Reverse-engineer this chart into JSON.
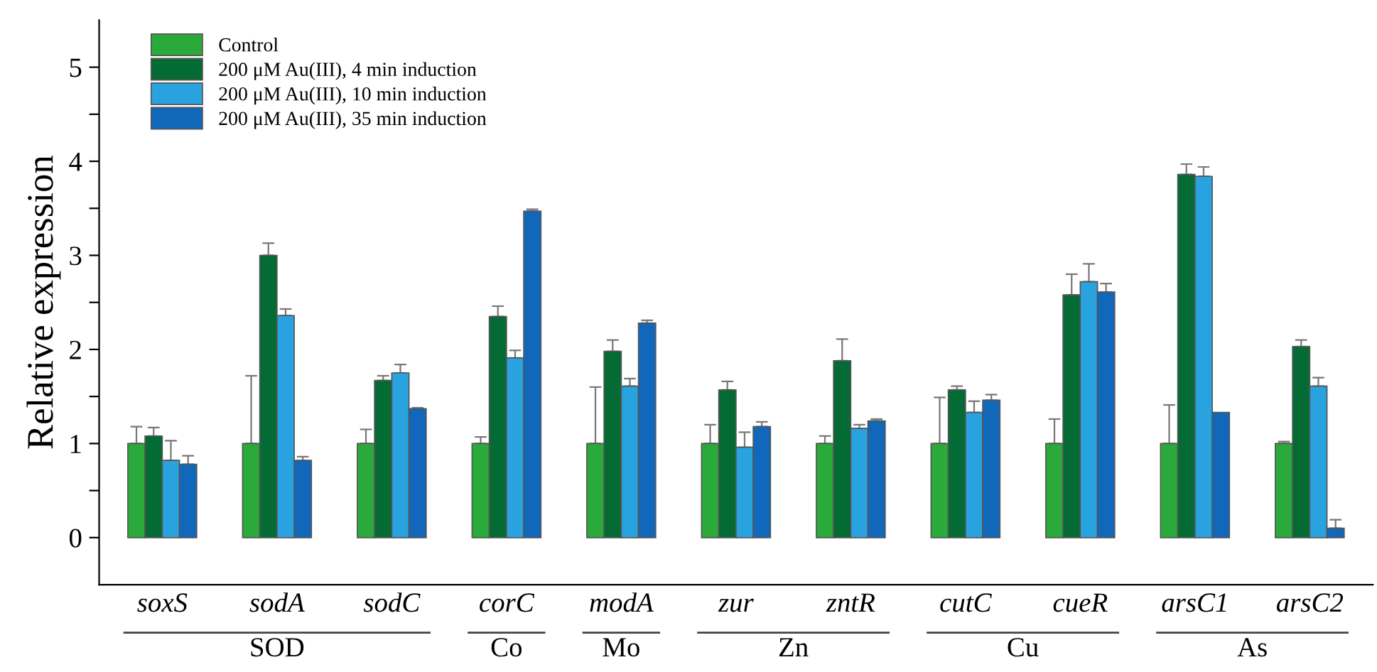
{
  "chart_data": {
    "type": "bar",
    "ylabel": "Relative expression",
    "categories": [
      "soxS",
      "sodA",
      "sodC",
      "corC",
      "modA",
      "zur",
      "zntR",
      "cutC",
      "cueR",
      "arsC1",
      "arsC2"
    ],
    "series": [
      {
        "name": "Control",
        "color": "#2aaa3a",
        "values": [
          1.0,
          1.0,
          1.0,
          1.0,
          1.0,
          1.0,
          1.0,
          1.0,
          1.0,
          1.0,
          1.0
        ],
        "errors": [
          [
            1.0,
            1.18
          ],
          [
            1.0,
            1.72
          ],
          [
            1.0,
            1.15
          ],
          [
            1.0,
            1.07
          ],
          [
            1.0,
            1.6
          ],
          [
            1.0,
            1.2
          ],
          [
            1.0,
            1.08
          ],
          [
            1.0,
            1.49
          ],
          [
            1.0,
            1.26
          ],
          [
            1.0,
            1.41
          ],
          [
            1.0,
            1.02
          ]
        ]
      },
      {
        "name": "200 μM Au(III), 4 min induction",
        "color": "#056b35",
        "values": [
          1.08,
          3.0,
          1.67,
          2.35,
          1.98,
          1.57,
          1.88,
          1.57,
          2.58,
          3.86,
          2.03
        ],
        "errors": [
          [
            1.08,
            1.17
          ],
          [
            3.0,
            3.13
          ],
          [
            1.67,
            1.72
          ],
          [
            2.35,
            2.46
          ],
          [
            1.98,
            2.1
          ],
          [
            1.57,
            1.66
          ],
          [
            1.88,
            2.11
          ],
          [
            1.57,
            1.61
          ],
          [
            2.58,
            2.8
          ],
          [
            3.86,
            3.97
          ],
          [
            2.03,
            2.1
          ]
        ]
      },
      {
        "name": "200 μM Au(III), 10 min induction",
        "color": "#29a3e0",
        "values": [
          0.82,
          2.36,
          1.75,
          1.91,
          1.61,
          0.96,
          1.16,
          1.33,
          2.72,
          3.84,
          1.61
        ],
        "errors": [
          [
            0.82,
            1.03
          ],
          [
            2.36,
            2.43
          ],
          [
            1.75,
            1.84
          ],
          [
            1.91,
            1.99
          ],
          [
            1.61,
            1.69
          ],
          [
            0.96,
            1.12
          ],
          [
            1.16,
            1.2
          ],
          [
            1.33,
            1.45
          ],
          [
            2.72,
            2.91
          ],
          [
            3.84,
            3.94
          ],
          [
            1.61,
            1.7
          ]
        ]
      },
      {
        "name": "200 μM Au(III), 35 min induction",
        "color": "#1168bb",
        "values": [
          0.78,
          0.82,
          1.37,
          3.47,
          2.28,
          1.18,
          1.24,
          1.46,
          2.61,
          1.33,
          0.1
        ],
        "errors": [
          [
            0.78,
            0.87
          ],
          [
            0.82,
            0.86
          ],
          [
            1.37,
            1.38
          ],
          [
            3.47,
            3.49
          ],
          [
            2.28,
            2.31
          ],
          [
            1.18,
            1.23
          ],
          [
            1.24,
            1.26
          ],
          [
            1.46,
            1.52
          ],
          [
            2.61,
            2.7
          ],
          null,
          [
            0.1,
            0.19
          ]
        ]
      }
    ],
    "ylim": [
      -0.5,
      5.5
    ],
    "yticks": [
      0,
      {
        "value": 0.5,
        "label": null
      },
      1,
      {
        "value": 1.5,
        "label": null
      },
      2,
      {
        "value": 2.5,
        "label": null
      },
      3,
      {
        "value": 3.5,
        "label": null
      },
      4,
      {
        "value": 4.5,
        "label": null
      },
      5
    ],
    "annotations": [
      "SOD",
      "Co",
      "Mo",
      "Zn",
      "Cu",
      "As"
    ],
    "legend": "top left",
    "grid": false
  }
}
